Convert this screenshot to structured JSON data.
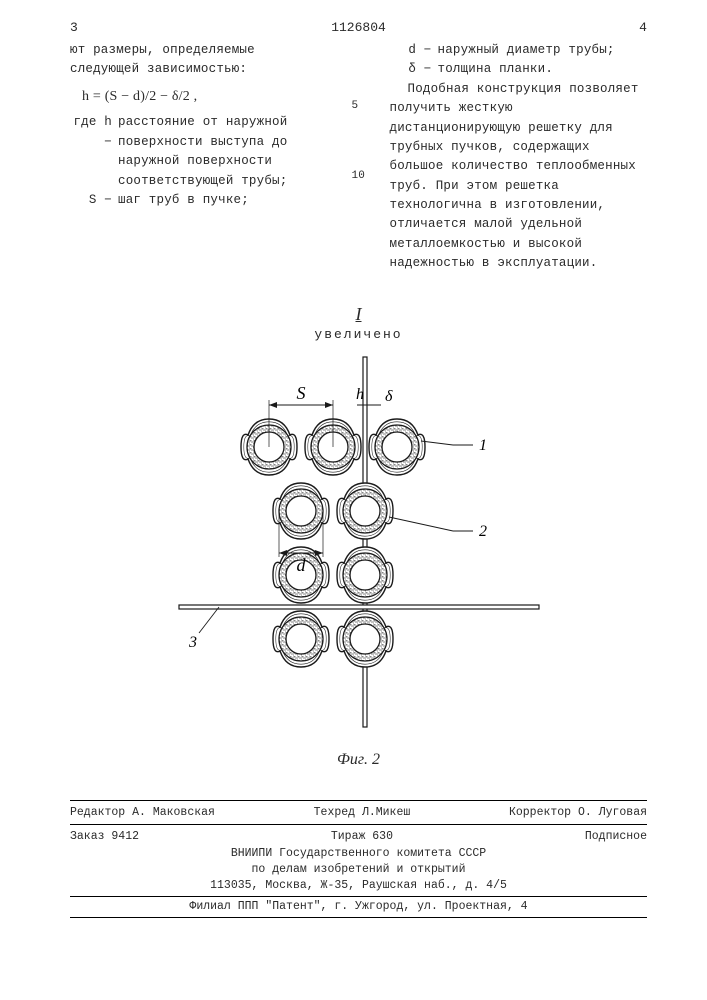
{
  "header": {
    "page_left": "3",
    "patent_no": "1126804",
    "page_right": "4"
  },
  "left_col": {
    "intro": "ют размеры, определяемые следующей зависимостью:",
    "formula": "h = (S − d)/2 − δ/2 ,",
    "def_h_sym": "где h −",
    "def_h": "расстояние от наружной поверхности выступа до наружной поверхности соответствующей трубы;",
    "def_S_sym": "S −",
    "def_S": "шаг труб в пучке;"
  },
  "right_col": {
    "def_d_sym": "d −",
    "def_d": "наружный диаметр трубы;",
    "def_delta_sym": "δ −",
    "def_delta": "толщина планки.",
    "para": "Подобная конструкция позволяет получить жесткую дистанционирующую решетку для трубных пучков, содержащих большое количество теплообменных труб. При этом решетка технологична в изготовлении, отличается малой удельной металлоемкостью и высокой надежностью в эксплуатации."
  },
  "gutter": {
    "n5": "5",
    "n10": "10"
  },
  "figure": {
    "roman": "I",
    "enlarged": "увеличено",
    "caption": "Фиг. 2",
    "dims": {
      "S": "S",
      "h": "h",
      "delta": "δ",
      "d": "d"
    },
    "labels": {
      "n1": "1",
      "n2": "2",
      "n3": "3"
    },
    "style": {
      "stroke": "#1a1a1a",
      "fill_bg": "#ffffff",
      "dot_pattern": "#2a2a2a",
      "lobe_r": 28,
      "tube_r_outer": 22,
      "tube_r_inner": 15,
      "pitch": 64,
      "plank_w": 4
    }
  },
  "footer": {
    "editor": "Редактор А. Маковская",
    "tech": "Техред Л.Микеш",
    "corr": "Корректор О. Луговая",
    "order": "Заказ 9412",
    "tirazh": "Тираж 630",
    "sub": "Подписное",
    "org1": "ВНИИПИ Государственного комитета СССР",
    "org2": "по делам изобретений и открытий",
    "addr": "113035, Москва, Ж-35, Раушская наб., д. 4/5",
    "branch": "Филиал ППП \"Патент\", г. Ужгород, ул. Проектная, 4"
  }
}
